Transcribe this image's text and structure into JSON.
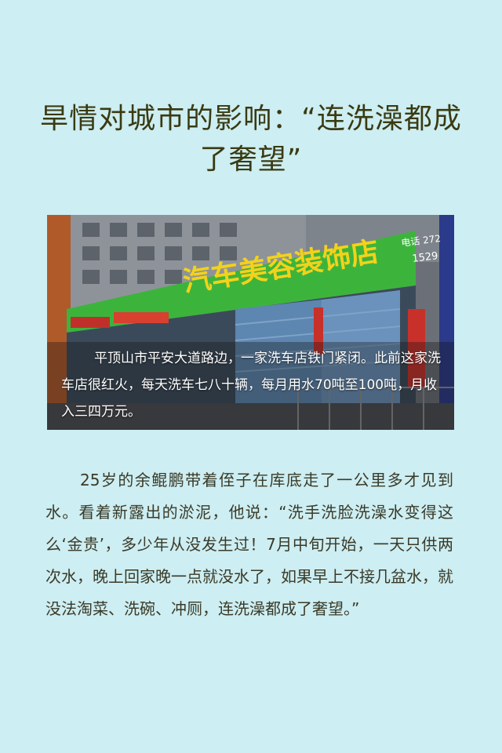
{
  "article": {
    "title": "旱情对城市的影响：“连洗澡都成了奢望”",
    "photo": {
      "sign_text": "汽车美容装饰店",
      "phone_label": "电话 272",
      "phone_line2": "1529",
      "caption": "平顶山市平安大道路边，一家洗车店铁门紧闭。此前这家洗车店很红火，每天洗车七八十辆，每月用水70吨至100吨，月收入三四万元。"
    },
    "body": "25岁的余鲲鹏带着侄子在库底走了一公里多才见到水。看着新露出的淤泥，他说：“洗手洗脸洗澡水变得这么‘金贵’，多少年从没发生过！7月中旬开始，一天只供两次水，晚上回家晚一点就没水了，如果早上不接几盆水，就没法淘菜、洗碗、冲厕，连洗澡都成了奢望。”"
  }
}
